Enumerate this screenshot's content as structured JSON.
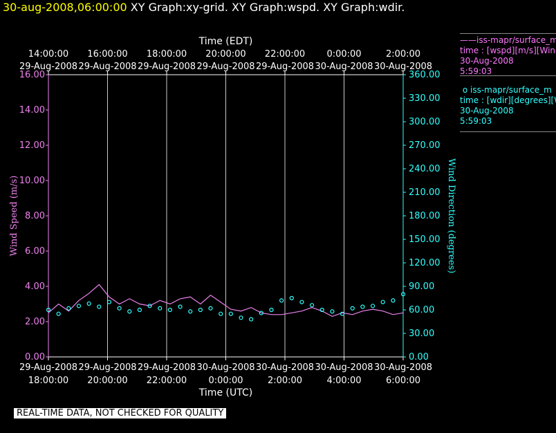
{
  "header": {
    "date": "30-aug-2008,06:00:00",
    "graph1": "XY Graph:xy-grid.",
    "graph2": "XY Graph:wspd.",
    "graph3": "XY Graph:wdir."
  },
  "legend": {
    "speed": {
      "line1": "iss-mapr/surface_m",
      "line2": "time : [wspd][m/s][Wind",
      "line3": "30-Aug-2008",
      "line4": "5:59:03"
    },
    "direction": {
      "line1": "iss-mapr/surface_m",
      "line2": "time : [wdir][degrees][W",
      "line3": "30-Aug-2008",
      "line4": "5:59:03"
    }
  },
  "footer_note": "REAL-TIME DATA, NOT CHECKED FOR QUALITY",
  "colors": {
    "speed": "#ee82ee",
    "direction": "#33ffff",
    "header_date": "#ffff00",
    "grid": "#ffffff"
  },
  "chart_data": {
    "type": "line",
    "xlabel_bottom": "Time (UTC)",
    "xlabel_top": "Time (EDT)",
    "ylabel_left": "Wind Speed (m/s)",
    "ylabel_right": "Wind Direction (degrees)",
    "ylim_left": [
      0,
      16
    ],
    "ylim_right": [
      0,
      360
    ],
    "yticks_left": [
      "0.00",
      "2.00",
      "4.00",
      "6.00",
      "8.00",
      "10.00",
      "12.00",
      "14.00",
      "16.00"
    ],
    "yticks_right": [
      "0.00",
      "30.00",
      "60.00",
      "90.00",
      "120.00",
      "150.00",
      "180.00",
      "210.00",
      "240.00",
      "270.00",
      "300.00",
      "330.00",
      "360.00"
    ],
    "xticks_bottom": [
      {
        "date": "29-Aug-2008",
        "time": "18:00:00"
      },
      {
        "date": "29-Aug-2008",
        "time": "20:00:00"
      },
      {
        "date": "29-Aug-2008",
        "time": "22:00:00"
      },
      {
        "date": "30-Aug-2008",
        "time": "0:00:00"
      },
      {
        "date": "30-Aug-2008",
        "time": "2:00:00"
      },
      {
        "date": "30-Aug-2008",
        "time": "4:00:00"
      },
      {
        "date": "30-Aug-2008",
        "time": "6:00:00"
      }
    ],
    "xticks_top": [
      {
        "time": "14:00:00",
        "date": "29-Aug-2008"
      },
      {
        "time": "16:00:00",
        "date": "29-Aug-2008"
      },
      {
        "time": "18:00:00",
        "date": "29-Aug-2008"
      },
      {
        "time": "20:00:00",
        "date": "29-Aug-2008"
      },
      {
        "time": "22:00:00",
        "date": "29-Aug-2008"
      },
      {
        "time": "0:00:00",
        "date": "30-Aug-2008"
      },
      {
        "time": "2:00:00",
        "date": "30-Aug-2008"
      }
    ],
    "grid": "vertical",
    "series": [
      {
        "name": "iss-mapr/surface_m time : [wspd][m/s]",
        "axis": "left",
        "style": "line",
        "x_start": "2008-08-29 18:00:00 UTC",
        "x_step_minutes": 12,
        "values": [
          2.5,
          3.0,
          2.6,
          3.2,
          3.6,
          4.1,
          3.4,
          3.0,
          3.3,
          3.0,
          2.9,
          3.2,
          3.0,
          3.3,
          3.4,
          3.0,
          3.5,
          3.1,
          2.7,
          2.6,
          2.8,
          2.5,
          2.4,
          2.4,
          2.5,
          2.6,
          2.8,
          2.6,
          2.3,
          2.5,
          2.4,
          2.6,
          2.7,
          2.6,
          2.4,
          2.5
        ]
      },
      {
        "name": "iss-mapr/surface_m time : [wdir][degrees]",
        "axis": "right",
        "style": "markers",
        "x_start": "2008-08-29 18:00:00 UTC",
        "x_step_minutes": 12,
        "values": [
          60,
          55,
          62,
          65,
          68,
          64,
          70,
          62,
          58,
          60,
          65,
          62,
          60,
          64,
          58,
          60,
          62,
          55,
          55,
          50,
          48,
          56,
          60,
          72,
          75,
          70,
          66,
          60,
          58,
          55,
          62,
          64,
          65,
          70,
          72,
          80
        ]
      }
    ]
  }
}
